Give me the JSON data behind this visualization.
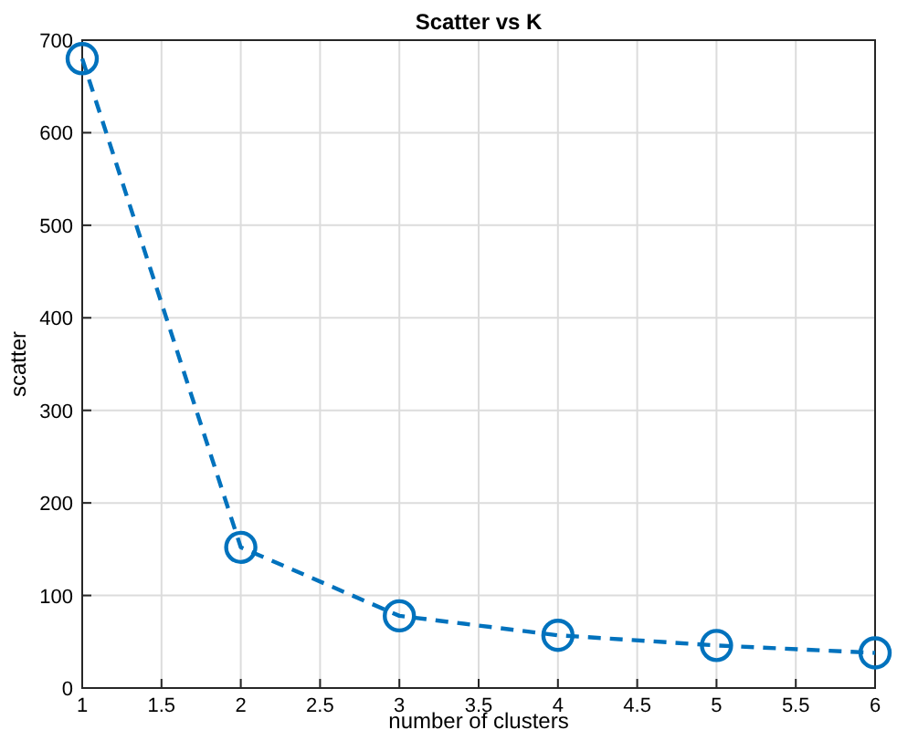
{
  "chart_data": {
    "type": "line",
    "title": "Scatter vs K",
    "xlabel": "number of clusters",
    "ylabel": "scatter",
    "x": [
      1,
      2,
      3,
      4,
      5,
      6
    ],
    "series": [
      {
        "color": "#0072bd",
        "values": [
          680,
          152,
          78,
          57,
          46,
          38
        ]
      }
    ],
    "xlim": [
      1,
      6
    ],
    "xticks": [
      1,
      1.5,
      2,
      2.5,
      3,
      3.5,
      4,
      4.5,
      5,
      5.5,
      6
    ],
    "ylim": [
      0,
      700
    ],
    "yticks": [
      0,
      100,
      200,
      300,
      400,
      500,
      600,
      700
    ],
    "grid": true,
    "marker": "circle",
    "line_style": "dashed"
  }
}
